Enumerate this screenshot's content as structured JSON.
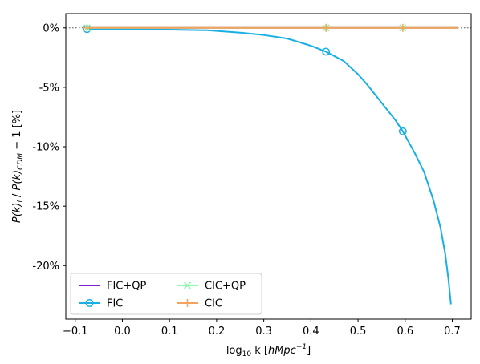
{
  "chart_data": {
    "type": "line",
    "title": "",
    "xlabel_parts": {
      "pre": "log",
      "sub": "10",
      "mid": " k [",
      "ital": "hMpc",
      "sup": "−1",
      "post": "]"
    },
    "ylabel_parts": [
      {
        "t": "P(k)",
        "i": true
      },
      {
        "t": "i",
        "sub": true,
        "i": true
      },
      {
        "t": " / ",
        "i": false
      },
      {
        "t": "P(k)",
        "i": true
      },
      {
        "t": "CDM",
        "sub": true,
        "i": true
      },
      {
        "t": "  − 1 [%]",
        "i": false
      }
    ],
    "xlim": [
      -0.12,
      0.74
    ],
    "ylim": [
      -24.5,
      1.2
    ],
    "xticks": [
      -0.1,
      0.0,
      0.1,
      0.2,
      0.3,
      0.4,
      0.5,
      0.6,
      0.7
    ],
    "xtick_labels": [
      "−0.1",
      "0.0",
      "0.1",
      "0.2",
      "0.3",
      "0.4",
      "0.5",
      "0.6",
      "0.7"
    ],
    "yticks": [
      0,
      -5,
      -10,
      -15,
      -20
    ],
    "ytick_labels": [
      "0%",
      "-5%",
      "-10%",
      "-15%",
      "-20%"
    ],
    "reference_line": {
      "y": 0,
      "style": "dotted",
      "color": "#555555"
    },
    "legend_position": "lower-left",
    "legend_columns": 2,
    "series": [
      {
        "name": "FIC+QP",
        "color": "#7a1fd6",
        "marker": "none",
        "x": [
          -0.075,
          0.71
        ],
        "y": [
          0.0,
          0.0
        ],
        "marker_x": []
      },
      {
        "name": "FIC",
        "color": "#18b0e4",
        "marker": "circle",
        "x": [
          -0.075,
          0.0,
          0.1,
          0.18,
          0.25,
          0.3,
          0.35,
          0.4,
          0.432,
          0.47,
          0.5,
          0.52,
          0.55,
          0.58,
          0.595,
          0.62,
          0.64,
          0.66,
          0.675,
          0.685,
          0.692,
          0.697
        ],
        "y": [
          -0.1,
          -0.1,
          -0.15,
          -0.2,
          -0.4,
          -0.6,
          -0.9,
          -1.5,
          -2.0,
          -2.8,
          -3.9,
          -4.8,
          -6.3,
          -7.8,
          -8.7,
          -10.5,
          -12.1,
          -14.5,
          -16.8,
          -19.0,
          -21.2,
          -23.2
        ],
        "marker_x": [
          -0.075,
          0.432,
          0.595
        ]
      },
      {
        "name": "CIC+QP",
        "color": "#8ef7a8",
        "marker": "x",
        "x": [
          -0.075,
          0.71
        ],
        "y": [
          0.0,
          0.0
        ],
        "marker_x": [
          -0.075,
          0.432,
          0.595
        ]
      },
      {
        "name": "CIC",
        "color": "#f5a35c",
        "marker": "plus",
        "x": [
          -0.075,
          0.71
        ],
        "y": [
          0.0,
          0.0
        ],
        "marker_x": [
          -0.075,
          0.432,
          0.595
        ]
      }
    ]
  }
}
